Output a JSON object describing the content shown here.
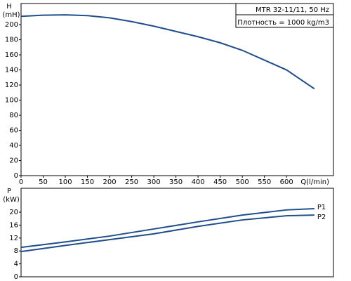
{
  "chart_data": [
    {
      "type": "line",
      "ylabel": "H",
      "ylabel_unit": "(mH)",
      "xlabel": "Q(l/min)",
      "annotations": [
        "MTR 32-11/11, 50 Hz",
        "Плотность = 1000 kg/m3"
      ],
      "x": [
        0,
        50,
        100,
        150,
        200,
        250,
        300,
        350,
        400,
        450,
        500,
        550,
        600,
        663
      ],
      "values": [
        211,
        212.5,
        213,
        212,
        209,
        204,
        198,
        191,
        184,
        176,
        166,
        153,
        140,
        115
      ],
      "color": "#1f4e8c",
      "xlim": [
        0,
        706
      ],
      "xticks": [
        0,
        50,
        100,
        150,
        200,
        250,
        300,
        350,
        400,
        450,
        500,
        550,
        600
      ],
      "ylim": [
        0,
        228
      ],
      "yticks": [
        0,
        20,
        40,
        60,
        80,
        100,
        120,
        140,
        160,
        180,
        200
      ],
      "grid": false
    },
    {
      "type": "line",
      "ylabel": "P",
      "ylabel_unit": "(kW)",
      "x": [
        0,
        100,
        200,
        300,
        400,
        500,
        600,
        663
      ],
      "series": [
        {
          "name": "P1",
          "color": "#1f4e8c",
          "values": [
            9.1,
            10.8,
            12.6,
            14.8,
            17,
            19.1,
            20.7,
            21.1
          ]
        },
        {
          "name": "P2",
          "color": "#1f4e8c",
          "values": [
            7.8,
            9.7,
            11.5,
            13.3,
            15.6,
            17.6,
            18.9,
            19.1
          ]
        }
      ],
      "xlim": [
        0,
        706
      ],
      "ylim": [
        0,
        27.4
      ],
      "yticks": [
        0,
        4,
        8,
        12,
        16,
        20
      ],
      "grid": false
    }
  ]
}
